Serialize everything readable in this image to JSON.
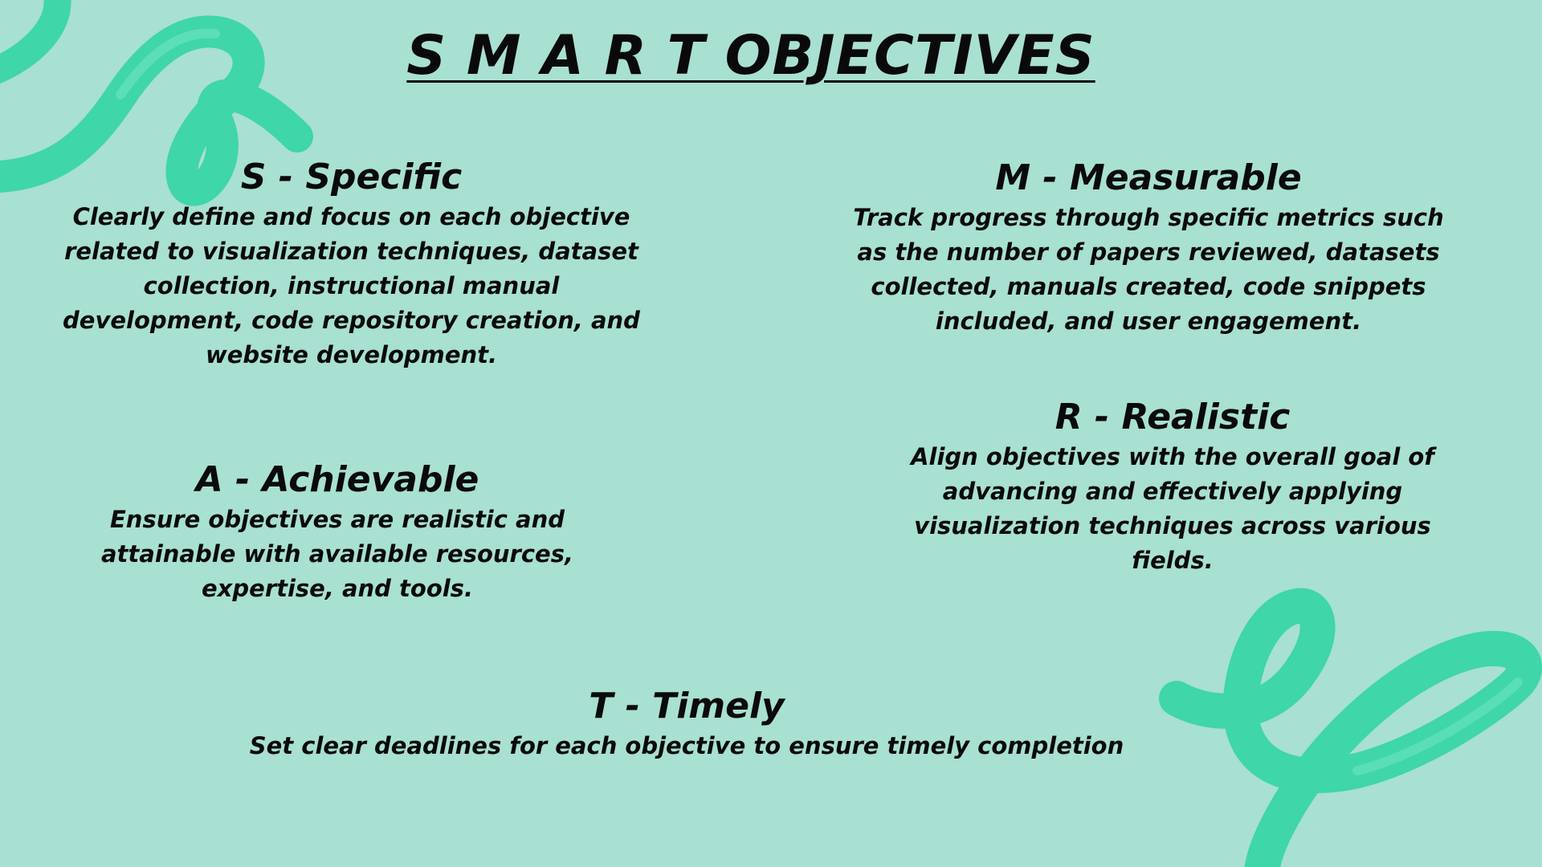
{
  "title": "S M A R T OBJECTIVES",
  "items": [
    {
      "heading": "S - Specific",
      "text": "Clearly define and focus on each objective related to visualization techniques, dataset collection, instructional manual development, code repository creation, and website development."
    },
    {
      "heading": "M - Measurable",
      "text": "Track progress through specific metrics such as the number of papers reviewed, datasets collected, manuals created, code snippets included, and user engagement."
    },
    {
      "heading": "A - Achievable",
      "text": "Ensure objectives are realistic and attainable with available resources, expertise, and tools."
    },
    {
      "heading": "R - Realistic",
      "text": "Align objectives with the overall goal of advancing and effectively applying visualization techniques across various fields."
    },
    {
      "heading": "T - Timely",
      "text": "Set clear deadlines for each objective to ensure timely completion"
    }
  ],
  "colors": {
    "background": "#a8e0d1",
    "ribbon": "#3fd6a8",
    "ribbon_highlight": "#6fe5c0",
    "text": "#0a0a0a"
  }
}
